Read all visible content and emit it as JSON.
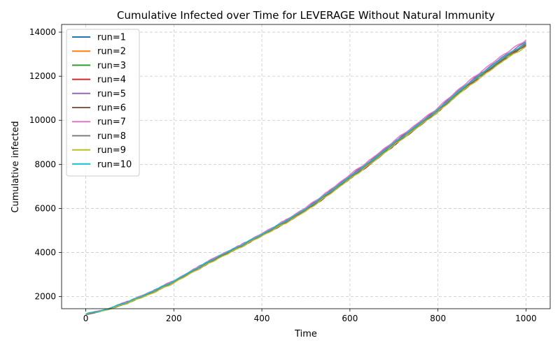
{
  "chart_data": {
    "type": "line",
    "title": "Cumulative Infected over Time for LEVERAGE Without Natural Immunity",
    "xlabel": "Time",
    "ylabel": "Cumulative infected",
    "xlim": [
      -55,
      1055
    ],
    "ylim": [
      1450,
      14350
    ],
    "xticks": [
      0,
      200,
      400,
      600,
      800,
      1000
    ],
    "yticks": [
      2000,
      4000,
      6000,
      8000,
      10000,
      12000,
      14000
    ],
    "grid": true,
    "legend_position": "top-left",
    "x": [
      0,
      50,
      100,
      150,
      200,
      250,
      300,
      350,
      400,
      450,
      500,
      550,
      600,
      650,
      700,
      750,
      800,
      850,
      900,
      950,
      1000
    ],
    "series": [
      {
        "name": "run=1",
        "color": "#1f77b4",
        "values": [
          1200,
          1430,
          1800,
          2220,
          2700,
          3270,
          3820,
          4300,
          4830,
          5380,
          5980,
          6700,
          7450,
          8180,
          8980,
          9730,
          10480,
          11360,
          12120,
          12860,
          13500
        ]
      },
      {
        "name": "run=2",
        "color": "#ff7f0e",
        "values": [
          1200,
          1420,
          1780,
          2200,
          2680,
          3240,
          3790,
          4270,
          4800,
          5340,
          5940,
          6660,
          7410,
          8140,
          8940,
          9700,
          10460,
          11330,
          12100,
          12840,
          13460
        ]
      },
      {
        "name": "run=3",
        "color": "#2ca02c",
        "values": [
          1200,
          1410,
          1770,
          2180,
          2660,
          3220,
          3760,
          4250,
          4780,
          5320,
          5920,
          6630,
          7380,
          8110,
          8910,
          9670,
          10420,
          11290,
          12050,
          12790,
          13410
        ]
      },
      {
        "name": "run=4",
        "color": "#d62728",
        "values": [
          1200,
          1420,
          1790,
          2210,
          2690,
          3260,
          3800,
          4290,
          4820,
          5360,
          5960,
          6680,
          7430,
          8160,
          8960,
          9720,
          10470,
          11350,
          12110,
          12850,
          13480
        ]
      },
      {
        "name": "run=5",
        "color": "#9467bd",
        "values": [
          1200,
          1430,
          1800,
          2230,
          2710,
          3280,
          3830,
          4310,
          4840,
          5400,
          6000,
          6720,
          7480,
          8220,
          9010,
          9760,
          10520,
          11400,
          12170,
          12920,
          13560
        ]
      },
      {
        "name": "run=6",
        "color": "#8c564b",
        "values": [
          1200,
          1410,
          1760,
          2180,
          2650,
          3210,
          3750,
          4240,
          4770,
          5300,
          5890,
          6600,
          7340,
          8060,
          8850,
          9620,
          10380,
          11250,
          12010,
          12760,
          13400
        ]
      },
      {
        "name": "run=7",
        "color": "#e377c2",
        "values": [
          1200,
          1440,
          1810,
          2240,
          2720,
          3290,
          3840,
          4320,
          4860,
          5430,
          6040,
          6770,
          7530,
          8270,
          9060,
          9810,
          10570,
          11460,
          12240,
          13000,
          13640
        ]
      },
      {
        "name": "run=8",
        "color": "#7f7f7f",
        "values": [
          1200,
          1420,
          1780,
          2200,
          2680,
          3250,
          3800,
          4280,
          4810,
          5360,
          5960,
          6670,
          7420,
          8150,
          8950,
          9710,
          10460,
          11340,
          12100,
          12840,
          13470
        ]
      },
      {
        "name": "run=9",
        "color": "#bcbd22",
        "values": [
          1200,
          1400,
          1740,
          2140,
          2620,
          3180,
          3720,
          4220,
          4750,
          5290,
          5880,
          6590,
          7340,
          8070,
          8870,
          9630,
          10380,
          11240,
          11990,
          12720,
          13350
        ]
      },
      {
        "name": "run=10",
        "color": "#17becf",
        "values": [
          1200,
          1430,
          1800,
          2220,
          2700,
          3260,
          3810,
          4300,
          4830,
          5380,
          5980,
          6690,
          7440,
          8170,
          8970,
          9720,
          10480,
          11360,
          12130,
          12880,
          13520
        ]
      }
    ]
  }
}
